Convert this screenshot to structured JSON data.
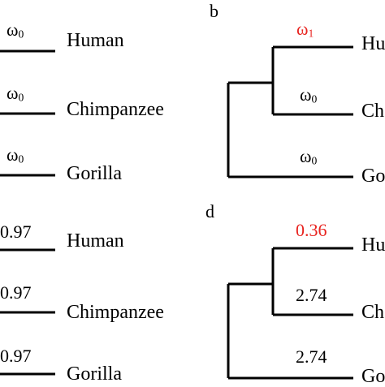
{
  "colors": {
    "line": "#000000",
    "highlight": "#e8231f"
  },
  "panels": {
    "a": {
      "taxa": [
        "Human",
        "Chimpanzee",
        "Gorilla"
      ],
      "branch_labels": [
        "ω",
        "ω",
        "ω"
      ],
      "branch_subscripts": [
        "0",
        "0",
        "0"
      ]
    },
    "b": {
      "letter": "b",
      "taxa": [
        "Hu",
        "Ch",
        "Go"
      ],
      "branch_labels": [
        "ω",
        "ω",
        "ω"
      ],
      "branch_subscripts": [
        "1",
        "0",
        "0"
      ],
      "highlighted_branch": 0
    },
    "c": {
      "taxa": [
        "Human",
        "Chimpanzee",
        "Gorilla"
      ],
      "branch_values": [
        "0.97",
        "0.97",
        "0.97"
      ]
    },
    "d": {
      "letter": "d",
      "taxa": [
        "Hu",
        "Ch",
        "Go"
      ],
      "branch_values": [
        "0.36",
        "2.74",
        "2.74"
      ],
      "highlighted_branch": 0
    }
  }
}
